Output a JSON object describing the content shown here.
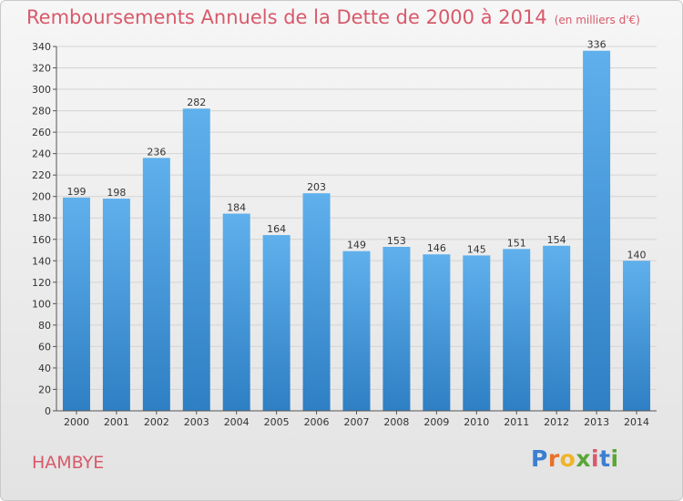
{
  "chart_data": {
    "type": "bar",
    "title": "Remboursements Annuels de la Dette de 2000 à 2014",
    "unit_label": "(en milliers d'€)",
    "categories": [
      "2000",
      "2001",
      "2002",
      "2003",
      "2004",
      "2005",
      "2006",
      "2007",
      "2008",
      "2009",
      "2010",
      "2011",
      "2012",
      "2013",
      "2014"
    ],
    "values": [
      199,
      198,
      236,
      282,
      184,
      164,
      203,
      149,
      153,
      146,
      145,
      151,
      154,
      336,
      140
    ],
    "ylim": [
      0,
      340
    ],
    "ytick_step": 20,
    "yticks": [
      "0",
      "20",
      "40",
      "60",
      "80",
      "100",
      "120",
      "140",
      "160",
      "180",
      "200",
      "220",
      "240",
      "260",
      "280",
      "300",
      "320",
      "340"
    ],
    "grid": true,
    "bar_color": "#4da3e6",
    "title_color": "#d8596a"
  },
  "commune": "HAMBYE",
  "logo": {
    "letters": [
      "P",
      "r",
      "o",
      "x",
      "i",
      "t",
      "i"
    ],
    "colors": [
      "#3b7fd0",
      "#e7722a",
      "#f0b429",
      "#5aa637",
      "#d8596a",
      "#3b7fd0",
      "#5aa637"
    ]
  }
}
